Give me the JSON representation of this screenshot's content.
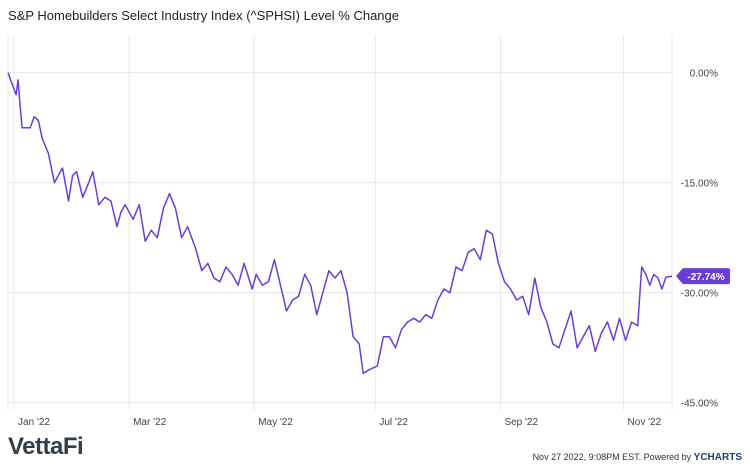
{
  "title": "S&P Homebuilders Select Industry Index (^SPHSI) Level % Change",
  "footer": {
    "logo_text": "VettaFi",
    "timestamp": "Nov 27 2022, 9:08PM EST. Powered by ",
    "powered_by": "YCHARTS"
  },
  "colors": {
    "series": "#6a3ed6",
    "grid": "#e8e8e8",
    "label_bg": "#6a3ed6"
  },
  "chart_data": {
    "type": "line",
    "title": "S&P Homebuilders Select Industry Index (^SPHSI) Level % Change",
    "y_ticks": [
      "0.00%",
      "-15.00%",
      "-30.00%",
      "-45.00%"
    ],
    "y_tick_values": [
      0,
      -15,
      -30,
      -45
    ],
    "ylim": [
      -46,
      5
    ],
    "x_ticks": [
      "Jan '22",
      "Mar '22",
      "May '22",
      "Jul '22",
      "Sep '22",
      "Nov '22"
    ],
    "x_tick_dates": [
      "2022-01-03",
      "2022-03-01",
      "2022-05-02",
      "2022-07-01",
      "2022-09-01",
      "2022-11-01"
    ],
    "xlim": [
      "2021-12-31",
      "2022-11-25"
    ],
    "grid": true,
    "last_value_label": "-27.74%",
    "series": [
      {
        "values": [
          [
            "2021-12-31",
            0.0
          ],
          [
            "2022-01-04",
            -3.0
          ],
          [
            "2022-01-05",
            -1.0
          ],
          [
            "2022-01-06",
            -4.5
          ],
          [
            "2022-01-07",
            -7.5
          ],
          [
            "2022-01-11",
            -7.5
          ],
          [
            "2022-01-13",
            -6.0
          ],
          [
            "2022-01-15",
            -6.5
          ],
          [
            "2022-01-17",
            -9.0
          ],
          [
            "2022-01-20",
            -11.0
          ],
          [
            "2022-01-23",
            -15.0
          ],
          [
            "2022-01-25",
            -14.0
          ],
          [
            "2022-01-27",
            -13.0
          ],
          [
            "2022-01-30",
            -17.5
          ],
          [
            "2022-02-01",
            -14.0
          ],
          [
            "2022-02-03",
            -13.5
          ],
          [
            "2022-02-06",
            -17.0
          ],
          [
            "2022-02-09",
            -15.0
          ],
          [
            "2022-02-11",
            -13.5
          ],
          [
            "2022-02-14",
            -18.0
          ],
          [
            "2022-02-17",
            -17.0
          ],
          [
            "2022-02-20",
            -17.5
          ],
          [
            "2022-02-23",
            -21.0
          ],
          [
            "2022-02-25",
            -19.0
          ],
          [
            "2022-02-27",
            -18.0
          ],
          [
            "2022-03-03",
            -20.0
          ],
          [
            "2022-03-06",
            -18.0
          ],
          [
            "2022-03-09",
            -23.0
          ],
          [
            "2022-03-12",
            -21.5
          ],
          [
            "2022-03-15",
            -22.5
          ],
          [
            "2022-03-18",
            -18.5
          ],
          [
            "2022-03-21",
            -16.5
          ],
          [
            "2022-03-24",
            -18.5
          ],
          [
            "2022-03-27",
            -22.5
          ],
          [
            "2022-03-30",
            -21.0
          ],
          [
            "2022-04-03",
            -24.0
          ],
          [
            "2022-04-06",
            -27.0
          ],
          [
            "2022-04-09",
            -26.0
          ],
          [
            "2022-04-12",
            -28.0
          ],
          [
            "2022-04-15",
            -28.5
          ],
          [
            "2022-04-18",
            -26.5
          ],
          [
            "2022-04-21",
            -27.5
          ],
          [
            "2022-04-24",
            -29.0
          ],
          [
            "2022-04-27",
            -26.0
          ],
          [
            "2022-05-01",
            -29.5
          ],
          [
            "2022-05-03",
            -27.5
          ],
          [
            "2022-05-06",
            -29.0
          ],
          [
            "2022-05-09",
            -28.5
          ],
          [
            "2022-05-12",
            -25.5
          ],
          [
            "2022-05-15",
            -29.0
          ],
          [
            "2022-05-18",
            -32.5
          ],
          [
            "2022-05-21",
            -31.0
          ],
          [
            "2022-05-24",
            -30.5
          ],
          [
            "2022-05-27",
            -27.5
          ],
          [
            "2022-05-30",
            -29.0
          ],
          [
            "2022-06-02",
            -33.0
          ],
          [
            "2022-06-05",
            -30.0
          ],
          [
            "2022-06-08",
            -27.0
          ],
          [
            "2022-06-11",
            -28.0
          ],
          [
            "2022-06-14",
            -27.0
          ],
          [
            "2022-06-17",
            -30.0
          ],
          [
            "2022-06-20",
            -36.0
          ],
          [
            "2022-06-23",
            -37.0
          ],
          [
            "2022-06-25",
            -41.0
          ],
          [
            "2022-06-28",
            -40.5
          ],
          [
            "2022-07-02",
            -40.0
          ],
          [
            "2022-07-05",
            -36.0
          ],
          [
            "2022-07-08",
            -36.0
          ],
          [
            "2022-07-11",
            -37.5
          ],
          [
            "2022-07-14",
            -35.0
          ],
          [
            "2022-07-17",
            -34.0
          ],
          [
            "2022-07-20",
            -33.5
          ],
          [
            "2022-07-23",
            -34.0
          ],
          [
            "2022-07-26",
            -33.0
          ],
          [
            "2022-07-29",
            -33.5
          ],
          [
            "2022-08-01",
            -31.0
          ],
          [
            "2022-08-04",
            -29.5
          ],
          [
            "2022-08-07",
            -30.0
          ],
          [
            "2022-08-10",
            -26.5
          ],
          [
            "2022-08-13",
            -27.0
          ],
          [
            "2022-08-16",
            -24.5
          ],
          [
            "2022-08-19",
            -24.0
          ],
          [
            "2022-08-22",
            -25.5
          ],
          [
            "2022-08-25",
            -21.5
          ],
          [
            "2022-08-28",
            -22.0
          ],
          [
            "2022-08-31",
            -26.0
          ],
          [
            "2022-09-03",
            -28.5
          ],
          [
            "2022-09-06",
            -29.5
          ],
          [
            "2022-09-09",
            -31.0
          ],
          [
            "2022-09-12",
            -30.5
          ],
          [
            "2022-09-15",
            -33.0
          ],
          [
            "2022-09-18",
            -28.0
          ],
          [
            "2022-09-21",
            -32.0
          ],
          [
            "2022-09-24",
            -34.0
          ],
          [
            "2022-09-27",
            -37.0
          ],
          [
            "2022-09-30",
            -37.5
          ],
          [
            "2022-10-03",
            -35.0
          ],
          [
            "2022-10-06",
            -32.5
          ],
          [
            "2022-10-09",
            -37.5
          ],
          [
            "2022-10-12",
            -36.0
          ],
          [
            "2022-10-15",
            -34.5
          ],
          [
            "2022-10-18",
            -38.0
          ],
          [
            "2022-10-21",
            -35.5
          ],
          [
            "2022-10-24",
            -34.0
          ],
          [
            "2022-10-27",
            -36.5
          ],
          [
            "2022-10-30",
            -33.5
          ],
          [
            "2022-11-02",
            -36.5
          ],
          [
            "2022-11-05",
            -34.0
          ],
          [
            "2022-11-08",
            -34.5
          ],
          [
            "2022-11-10",
            -26.5
          ],
          [
            "2022-11-12",
            -27.5
          ],
          [
            "2022-11-14",
            -29.0
          ],
          [
            "2022-11-16",
            -27.5
          ],
          [
            "2022-11-18",
            -28.0
          ],
          [
            "2022-11-20",
            -29.5
          ],
          [
            "2022-11-22",
            -27.9
          ],
          [
            "2022-11-25",
            -27.74
          ]
        ]
      }
    ]
  }
}
